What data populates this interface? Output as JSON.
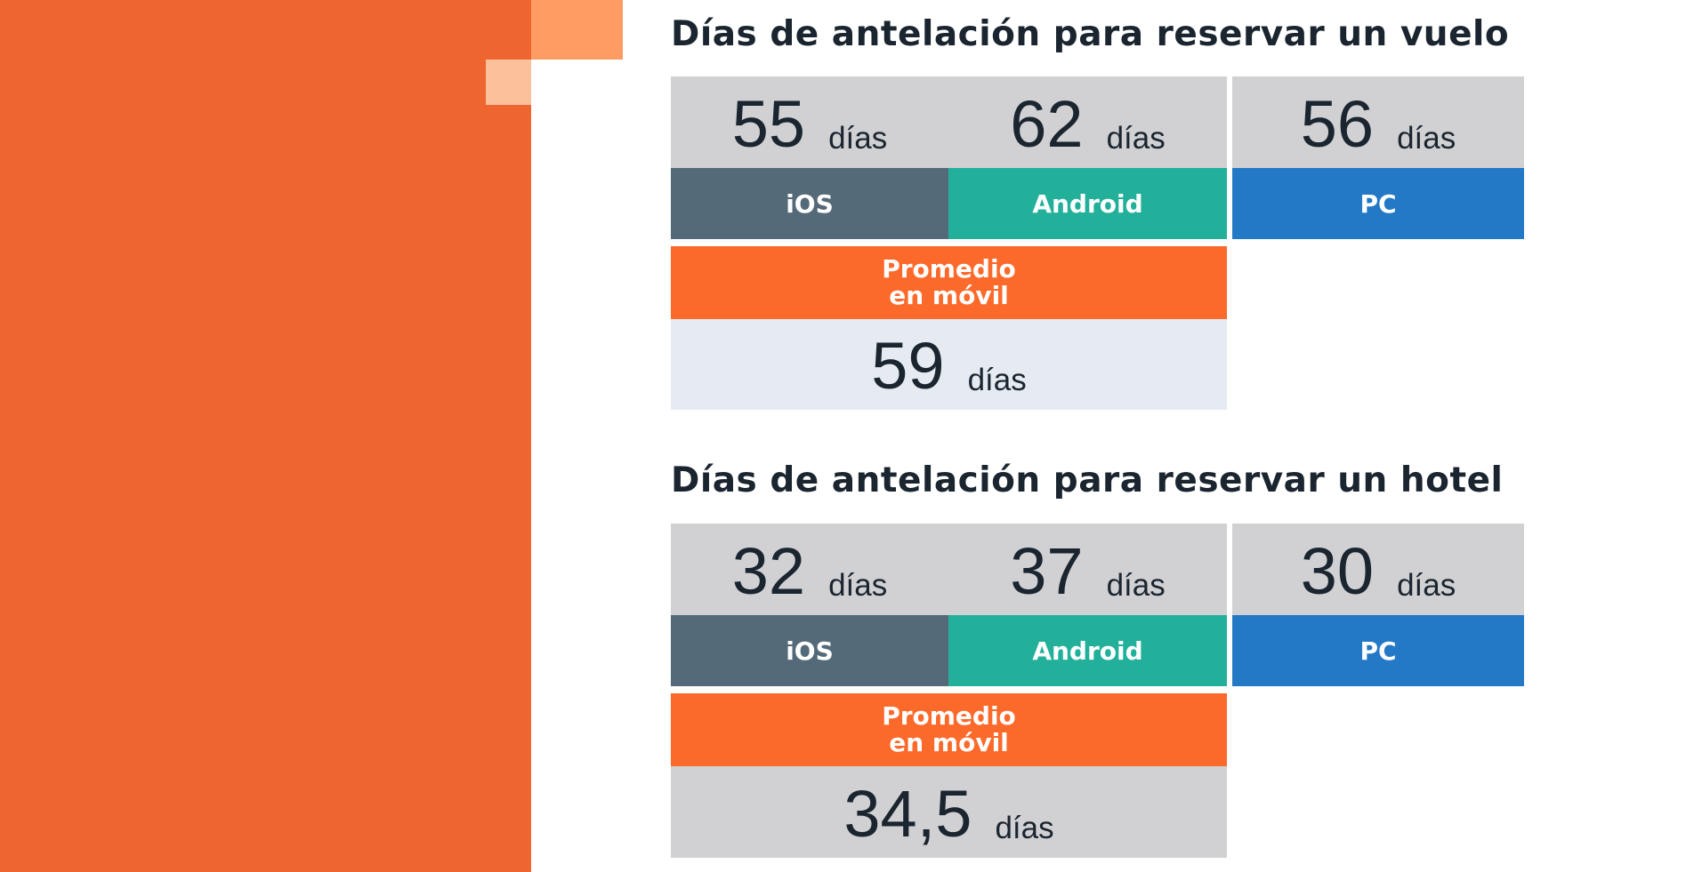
{
  "colors": {
    "side_panel": "#ef6530",
    "deco_light": "#fe9c64",
    "deco_pale": "#fcc09a",
    "ios": "#546a79",
    "android": "#23b09b",
    "pc": "#2479c7",
    "mobile_avg": "#fc6a2b",
    "value_bg": "#d1d1d3",
    "avg_value_bg_flight": "#e5ebf1",
    "avg_value_bg_hotel": "#d1d1d3",
    "text_dark": "#1a2530"
  },
  "sections": [
    {
      "title": "Días de antelación para reservar un vuelo",
      "ios": {
        "value": "55",
        "unit": "días",
        "label": "iOS"
      },
      "android": {
        "value": "62",
        "unit": "días",
        "label": "Android"
      },
      "pc": {
        "value": "56",
        "unit": "días",
        "label": "PC"
      },
      "mobile_avg": {
        "label_line1": "Promedio",
        "label_line2": "en móvil",
        "value": "59",
        "unit": "días"
      }
    },
    {
      "title": "Días de antelación para reservar un hotel",
      "ios": {
        "value": "32",
        "unit": "días",
        "label": "iOS"
      },
      "android": {
        "value": "37",
        "unit": "días",
        "label": "Android"
      },
      "pc": {
        "value": "30",
        "unit": "días",
        "label": "PC"
      },
      "mobile_avg": {
        "label_line1": "Promedio",
        "label_line2": "en móvil",
        "value": "34,5",
        "unit": "días"
      }
    }
  ]
}
